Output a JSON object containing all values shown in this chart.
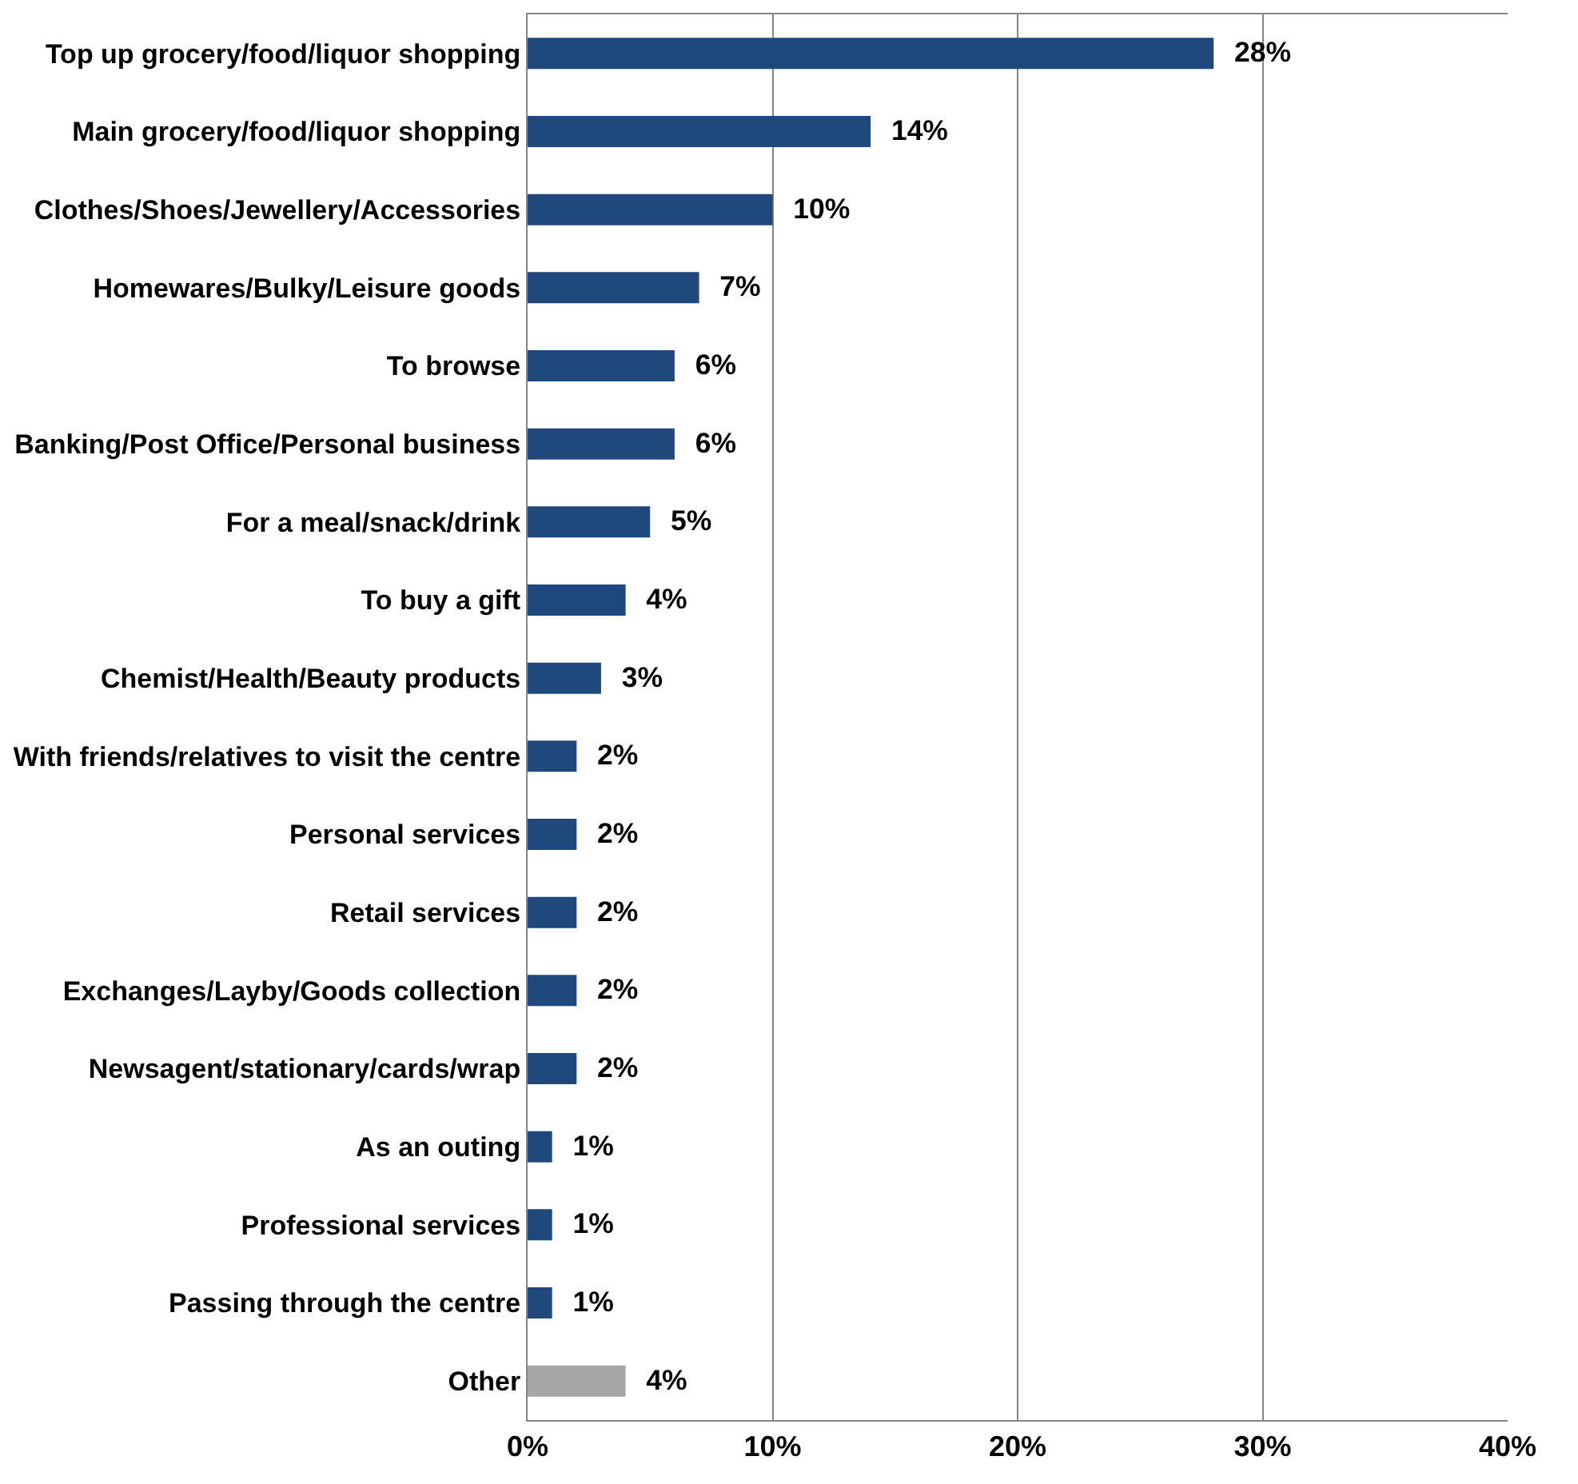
{
  "chart_data": {
    "type": "bar",
    "orientation": "horizontal",
    "categories": [
      "Top up grocery/food/liquor shopping",
      "Main grocery/food/liquor shopping",
      "Clothes/Shoes/Jewellery/Accessories",
      "Homewares/Bulky/Leisure goods",
      "To browse",
      "Banking/Post Office/Personal business",
      "For a meal/snack/drink",
      "To buy a gift",
      "Chemist/Health/Beauty products",
      "With friends/relatives to visit the centre",
      "Personal services",
      "Retail services",
      "Exchanges/Layby/Goods collection",
      "Newsagent/stationary/cards/wrap",
      "As an outing",
      "Professional services",
      "Passing through the centre",
      "Other"
    ],
    "values": [
      28,
      14,
      10,
      7,
      6,
      6,
      5,
      4,
      3,
      2,
      2,
      2,
      2,
      2,
      1,
      1,
      1,
      4
    ],
    "value_labels": [
      "28%",
      "14%",
      "10%",
      "7%",
      "6%",
      "6%",
      "5%",
      "4%",
      "3%",
      "2%",
      "2%",
      "2%",
      "2%",
      "2%",
      "1%",
      "1%",
      "1%",
      "4%"
    ],
    "colors": [
      "#1f497d",
      "#1f497d",
      "#1f497d",
      "#1f497d",
      "#1f497d",
      "#1f497d",
      "#1f497d",
      "#1f497d",
      "#1f497d",
      "#1f497d",
      "#1f497d",
      "#1f497d",
      "#1f497d",
      "#1f497d",
      "#1f497d",
      "#1f497d",
      "#1f497d",
      "#a6a6a6"
    ],
    "xlim": [
      0,
      40
    ],
    "xticks": [
      {
        "value": 0,
        "label": "0%"
      },
      {
        "value": 10,
        "label": "10%"
      },
      {
        "value": 20,
        "label": "20%"
      },
      {
        "value": 30,
        "label": "30%"
      },
      {
        "value": 40,
        "label": "40%"
      }
    ],
    "grid": "x"
  }
}
